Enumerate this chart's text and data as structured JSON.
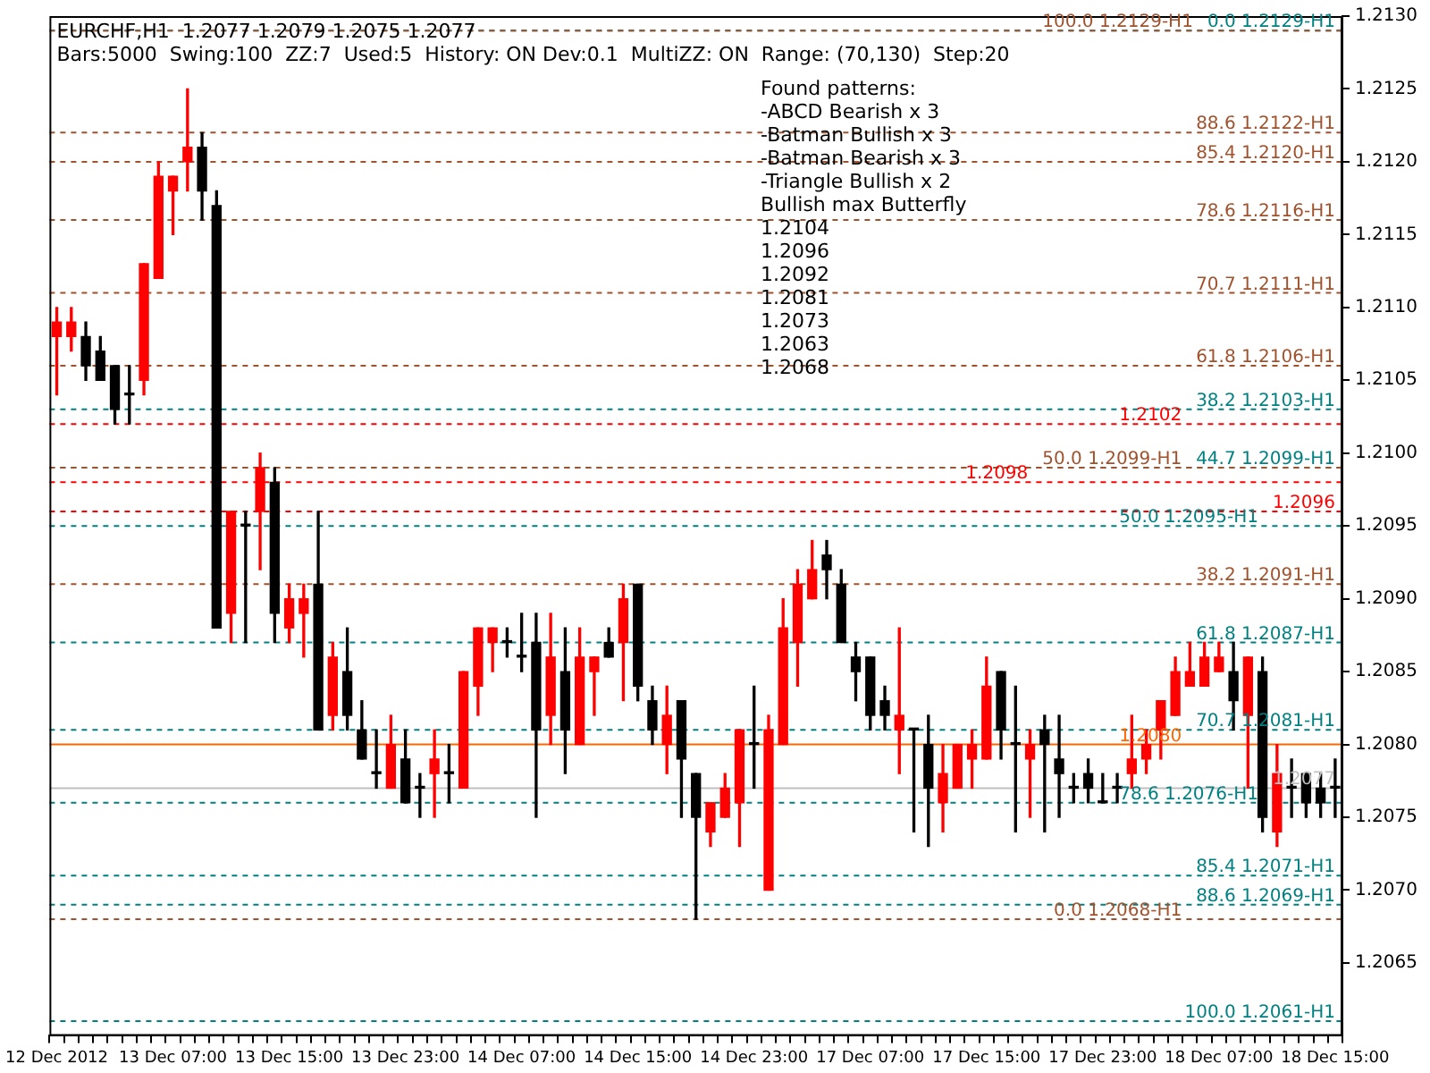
{
  "chart_data": {
    "type": "candlestick",
    "title": "EURCHF,H1  1.2077 1.2079 1.2075 1.2077",
    "subtitle": "Bars:5000  Swing:100  ZZ:7  Used:5  History: ON Dev:0.1  MultiZZ: ON  Range: (70,130)  Step:20",
    "categories": [
      "12 Dec 2012",
      null,
      null,
      null,
      null,
      null,
      null,
      null,
      "13 Dec 07:00",
      null,
      null,
      null,
      null,
      null,
      null,
      null,
      "13 Dec 15:00",
      null,
      null,
      null,
      null,
      null,
      null,
      null,
      "13 Dec 23:00",
      null,
      null,
      null,
      null,
      null,
      null,
      null,
      "14 Dec 07:00",
      null,
      null,
      null,
      null,
      null,
      null,
      null,
      "14 Dec 15:00",
      null,
      null,
      null,
      null,
      null,
      null,
      null,
      "14 Dec 23:00",
      null,
      null,
      null,
      null,
      null,
      null,
      null,
      "17 Dec 07:00",
      null,
      null,
      null,
      null,
      null,
      null,
      null,
      "17 Dec 15:00",
      null,
      null,
      null,
      null,
      null,
      null,
      null,
      "17 Dec 23:00",
      null,
      null,
      null,
      null,
      null,
      null,
      null,
      "18 Dec 07:00",
      null,
      null,
      null,
      null,
      null,
      null,
      null,
      "18 Dec 15:00"
    ],
    "ohlc": [
      [
        1.2108,
        1.211,
        1.2104,
        1.2109
      ],
      [
        1.2108,
        1.211,
        1.2107,
        1.2109
      ],
      [
        1.2108,
        1.2109,
        1.2105,
        1.2106
      ],
      [
        1.2107,
        1.2108,
        1.2105,
        1.2105
      ],
      [
        1.2106,
        1.2106,
        1.2102,
        1.2103
      ],
      [
        1.2104,
        1.2106,
        1.2102,
        1.2104
      ],
      [
        1.2105,
        1.2113,
        1.2104,
        1.2113
      ],
      [
        1.2112,
        1.212,
        1.2112,
        1.2119
      ],
      [
        1.2118,
        1.2119,
        1.2115,
        1.2119
      ],
      [
        1.212,
        1.2125,
        1.2118,
        1.2121
      ],
      [
        1.2121,
        1.2122,
        1.2116,
        1.2118
      ],
      [
        1.2117,
        1.2118,
        1.2088,
        1.2088
      ],
      [
        1.2089,
        1.2096,
        1.2087,
        1.2096
      ],
      [
        1.2095,
        1.2096,
        1.2087,
        1.2095
      ],
      [
        1.2096,
        1.21,
        1.2092,
        1.2099
      ],
      [
        1.2098,
        1.2099,
        1.2087,
        1.2089
      ],
      [
        1.2088,
        1.2091,
        1.2087,
        1.209
      ],
      [
        1.2089,
        1.2091,
        1.2086,
        1.209
      ],
      [
        1.2091,
        1.2096,
        1.2081,
        1.2081
      ],
      [
        1.2082,
        1.2087,
        1.2081,
        1.2086
      ],
      [
        1.2085,
        1.2088,
        1.2081,
        1.2082
      ],
      [
        1.2081,
        1.2083,
        1.2079,
        1.2079
      ],
      [
        1.2078,
        1.2081,
        1.2077,
        1.2078
      ],
      [
        1.2077,
        1.2082,
        1.2077,
        1.208
      ],
      [
        1.2079,
        1.2081,
        1.2076,
        1.2076
      ],
      [
        1.2077,
        1.2078,
        1.2075,
        1.2077
      ],
      [
        1.2078,
        1.2081,
        1.2075,
        1.2079
      ],
      [
        1.2078,
        1.208,
        1.2076,
        1.2078
      ],
      [
        1.2077,
        1.2085,
        1.2077,
        1.2085
      ],
      [
        1.2084,
        1.2088,
        1.2082,
        1.2088
      ],
      [
        1.2087,
        1.2088,
        1.2085,
        1.2088
      ],
      [
        1.2087,
        1.2088,
        1.2086,
        1.2087
      ],
      [
        1.2086,
        1.2089,
        1.2085,
        1.2086
      ],
      [
        1.2087,
        1.2089,
        1.2075,
        1.2081
      ],
      [
        1.2082,
        1.2089,
        1.208,
        1.2086
      ],
      [
        1.2085,
        1.2088,
        1.2078,
        1.2081
      ],
      [
        1.208,
        1.2088,
        1.208,
        1.2086
      ],
      [
        1.2085,
        1.2086,
        1.2082,
        1.2086
      ],
      [
        1.2087,
        1.2088,
        1.2086,
        1.2086
      ],
      [
        1.2087,
        1.2091,
        1.2083,
        1.209
      ],
      [
        1.2091,
        1.2091,
        1.2083,
        1.2084
      ],
      [
        1.2083,
        1.2084,
        1.208,
        1.2081
      ],
      [
        1.208,
        1.2084,
        1.2078,
        1.2082
      ],
      [
        1.2083,
        1.2083,
        1.2075,
        1.2079
      ],
      [
        1.2078,
        1.2078,
        1.2068,
        1.2075
      ],
      [
        1.2074,
        1.2076,
        1.2073,
        1.2076
      ],
      [
        1.2075,
        1.2078,
        1.2075,
        1.2077
      ],
      [
        1.2076,
        1.2081,
        1.2073,
        1.2081
      ],
      [
        1.208,
        1.2084,
        1.2077,
        1.208
      ],
      [
        1.207,
        1.2082,
        1.207,
        1.2081
      ],
      [
        1.208,
        1.209,
        1.208,
        1.2088
      ],
      [
        1.2087,
        1.2092,
        1.2084,
        1.2091
      ],
      [
        1.209,
        1.2094,
        1.209,
        1.2092
      ],
      [
        1.2093,
        1.2094,
        1.209,
        1.2092
      ],
      [
        1.2091,
        1.2092,
        1.2087,
        1.2087
      ],
      [
        1.2086,
        1.2087,
        1.2083,
        1.2085
      ],
      [
        1.2086,
        1.2086,
        1.2081,
        1.2082
      ],
      [
        1.2083,
        1.2084,
        1.2081,
        1.2082
      ],
      [
        1.2081,
        1.2088,
        1.2078,
        1.2082
      ],
      [
        1.2081,
        1.2081,
        1.2074,
        1.2081
      ],
      [
        1.208,
        1.2082,
        1.2073,
        1.2077
      ],
      [
        1.2076,
        1.208,
        1.2074,
        1.2078
      ],
      [
        1.2077,
        1.208,
        1.2077,
        1.208
      ],
      [
        1.2079,
        1.2081,
        1.2077,
        1.208
      ],
      [
        1.2079,
        1.2086,
        1.2079,
        1.2084
      ],
      [
        1.2085,
        1.2085,
        1.2079,
        1.2081
      ],
      [
        1.208,
        1.2084,
        1.2074,
        1.208
      ],
      [
        1.2079,
        1.2081,
        1.2075,
        1.208
      ],
      [
        1.2081,
        1.2082,
        1.2074,
        1.208
      ],
      [
        1.2079,
        1.2082,
        1.2075,
        1.2078
      ],
      [
        1.2077,
        1.2078,
        1.2076,
        1.2077
      ],
      [
        1.2078,
        1.2079,
        1.2076,
        1.2077
      ],
      [
        1.2076,
        1.2078,
        1.2076,
        1.2076
      ],
      [
        1.2077,
        1.2078,
        1.2076,
        1.2077
      ],
      [
        1.2078,
        1.2082,
        1.2077,
        1.2079
      ],
      [
        1.2079,
        1.2081,
        1.2078,
        1.208
      ],
      [
        1.2081,
        1.2083,
        1.2079,
        1.2083
      ],
      [
        1.2082,
        1.2086,
        1.2082,
        1.2085
      ],
      [
        1.2084,
        1.2087,
        1.2084,
        1.2085
      ],
      [
        1.2084,
        1.2087,
        1.2084,
        1.2086
      ],
      [
        1.2085,
        1.2087,
        1.2085,
        1.2086
      ],
      [
        1.2085,
        1.2087,
        1.2081,
        1.2083
      ],
      [
        1.2082,
        1.2086,
        1.2077,
        1.2086
      ],
      [
        1.2085,
        1.2086,
        1.2074,
        1.2075
      ],
      [
        1.2074,
        1.208,
        1.2073,
        1.2078
      ],
      [
        1.2077,
        1.2079,
        1.2075,
        1.2077
      ],
      [
        1.2078,
        1.2078,
        1.2075,
        1.2076
      ],
      [
        1.2077,
        1.2078,
        1.2075,
        1.2076
      ],
      [
        1.2077,
        1.2079,
        1.2075,
        1.2077
      ]
    ],
    "colors": [
      "#ff0000",
      "#ff0000",
      "#000000",
      "#000000",
      "#000000",
      "#000000",
      "#ff0000",
      "#ff0000",
      "#ff0000",
      "#ff0000",
      "#000000",
      "#000000",
      "#ff0000",
      "#000000",
      "#ff0000",
      "#000000",
      "#ff0000",
      "#ff0000",
      "#000000",
      "#ff0000",
      "#000000",
      "#000000",
      "#000000",
      "#ff0000",
      "#000000",
      "#000000",
      "#ff0000",
      "#000000",
      "#ff0000",
      "#ff0000",
      "#ff0000",
      "#000000",
      "#000000",
      "#000000",
      "#ff0000",
      "#000000",
      "#ff0000",
      "#ff0000",
      "#000000",
      "#ff0000",
      "#000000",
      "#000000",
      "#ff0000",
      "#000000",
      "#000000",
      "#ff0000",
      "#ff0000",
      "#ff0000",
      "#000000",
      "#ff0000",
      "#ff0000",
      "#ff0000",
      "#ff0000",
      "#000000",
      "#000000",
      "#000000",
      "#000000",
      "#000000",
      "#ff0000",
      "#000000",
      "#000000",
      "#ff0000",
      "#ff0000",
      "#ff0000",
      "#ff0000",
      "#000000",
      "#000000",
      "#ff0000",
      "#000000",
      "#000000",
      "#000000",
      "#000000",
      "#000000",
      "#000000",
      "#ff0000",
      "#ff0000",
      "#ff0000",
      "#ff0000",
      "#ff0000",
      "#ff0000",
      "#ff0000",
      "#000000",
      "#ff0000",
      "#000000",
      "#ff0000",
      "#000000",
      "#000000",
      "#000000",
      "#000000"
    ],
    "ylim": [
      1.206,
      1.213
    ],
    "yticks": [
      1.2065,
      {
        "value": 1.207,
        "label": "1.2070"
      },
      1.2075,
      {
        "value": 1.208,
        "label": "1.2080"
      },
      1.2085,
      {
        "value": 1.209,
        "label": "1.2090"
      },
      1.2095,
      {
        "value": 1.21,
        "label": "1.2100"
      },
      1.2105,
      {
        "value": 1.211,
        "label": "1.2110"
      },
      1.2115,
      {
        "value": 1.212,
        "label": "1.2120"
      },
      1.2125,
      {
        "value": 1.213,
        "label": "1.2130"
      }
    ],
    "grid": false,
    "ref_lines": [
      {
        "axis": "y",
        "value": 1.2129,
        "label": "0.0 1.2129-H1",
        "color": "#008080",
        "line_style": "dashed"
      },
      {
        "axis": "y",
        "value": 1.2129,
        "label": "100.0 1.2129-H1",
        "color": "#a0522d",
        "line_style": "dashed"
      },
      {
        "axis": "y",
        "value": 1.2122,
        "label": "88.6 1.2122-H1",
        "color": "#a0522d",
        "line_style": "dashed"
      },
      {
        "axis": "y",
        "value": 1.212,
        "label": "85.4 1.2120-H1",
        "color": "#a0522d",
        "line_style": "dashed"
      },
      {
        "axis": "y",
        "value": 1.2116,
        "label": "78.6 1.2116-H1",
        "color": "#a0522d",
        "line_style": "dashed"
      },
      {
        "axis": "y",
        "value": 1.2111,
        "label": "70.7 1.2111-H1",
        "color": "#a0522d",
        "line_style": "dashed"
      },
      {
        "axis": "y",
        "value": 1.2106,
        "label": "61.8 1.2106-H1",
        "color": "#a0522d",
        "line_style": "dashed"
      },
      {
        "axis": "y",
        "value": 1.2103,
        "label": "38.2 1.2103-H1",
        "color": "#008080",
        "line_style": "dashed"
      },
      {
        "axis": "y",
        "value": 1.2102,
        "label": "1.2102",
        "color": "#ff0000",
        "line_style": "dashed"
      },
      {
        "axis": "y",
        "value": 1.2099,
        "label": "44.7 1.2099-H1",
        "color": "#008080",
        "line_style": "dashed"
      },
      {
        "axis": "y",
        "value": 1.2099,
        "label": "50.0 1.2099-H1",
        "color": "#a0522d",
        "line_style": "dashed"
      },
      {
        "axis": "y",
        "value": 1.2098,
        "label": "1.2098",
        "color": "#ff0000",
        "line_style": "dashed"
      },
      {
        "axis": "y",
        "value": 1.2096,
        "label": "1.2096",
        "color": "#ff0000",
        "line_style": "dashed"
      },
      {
        "axis": "y",
        "value": 1.2095,
        "label": "50.0 1.2095-H1",
        "color": "#008080",
        "line_style": "dashed"
      },
      {
        "axis": "y",
        "value": 1.2091,
        "label": "38.2 1.2091-H1",
        "color": "#a0522d",
        "line_style": "dashed"
      },
      {
        "axis": "y",
        "value": 1.2087,
        "label": "61.8 1.2087-H1",
        "color": "#008080",
        "line_style": "dashed"
      },
      {
        "axis": "y",
        "value": 1.2081,
        "label": "70.7 1.2081-H1",
        "color": "#008080",
        "line_style": "dashed"
      },
      {
        "axis": "y",
        "value": 1.208,
        "label": "1.2080",
        "color": "#ff6600",
        "line_style": "solid"
      },
      {
        "axis": "y",
        "value": 1.2077,
        "label": "1.2077",
        "color": "#c0c0c0",
        "line_style": "solid"
      },
      {
        "axis": "y",
        "value": 1.2076,
        "label": "78.6 1.2076-H1",
        "color": "#008080",
        "line_style": "dashed"
      },
      {
        "axis": "y",
        "value": 1.2071,
        "label": "85.4 1.2071-H1",
        "color": "#008080",
        "line_style": "dashed"
      },
      {
        "axis": "y",
        "value": 1.2069,
        "label": "88.6 1.2069-H1",
        "color": "#008080",
        "line_style": "dashed"
      },
      {
        "axis": "y",
        "value": 1.2068,
        "label": "0.0 1.2068-H1",
        "color": "#a0522d",
        "line_style": "dashed"
      },
      {
        "axis": "y",
        "value": 1.2061,
        "label": "100.0 1.2061-H1",
        "color": "#008080",
        "line_style": "dashed"
      }
    ],
    "annotations": [
      "Found patterns:",
      "-ABCD Bearish x 3",
      "-Batman Bullish x 3",
      "-Batman Bearish x 3",
      "-Triangle Bullish x 2",
      "Bullish max Butterfly",
      "1.2104",
      "1.2096",
      "1.2092",
      "1.2081",
      "1.2073",
      "1.2063",
      "1.2068"
    ]
  }
}
